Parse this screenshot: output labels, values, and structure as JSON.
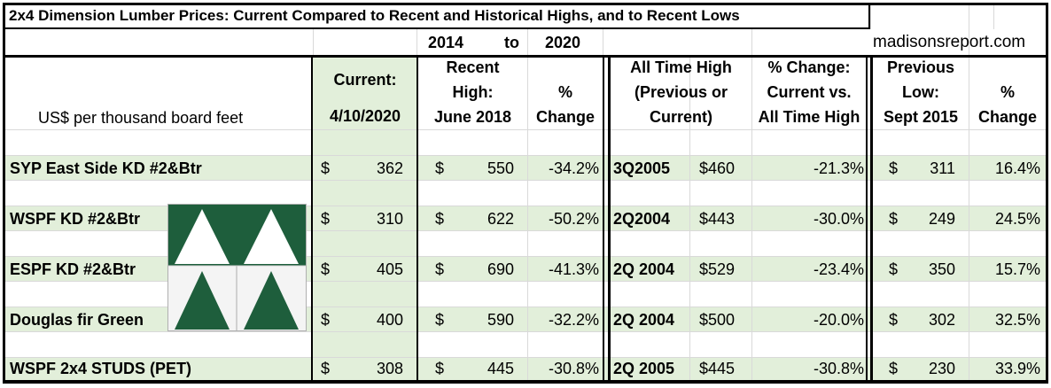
{
  "title": "2x4 Dimension Lumber Prices: Current Compared to Recent and Historical Highs, and to Recent Lows",
  "period": {
    "start": "2014",
    "to": "to",
    "end": "2020"
  },
  "website": "madisonsreport.com",
  "headers": {
    "units": "US$ per thousand board feet",
    "current_line1": "Current:",
    "current_line2": "4/10/2020",
    "recent_line1": "Recent",
    "recent_line2": "High:",
    "recent_line3": "June 2018",
    "pct_line1": "%",
    "pct_line2": "Change",
    "ath_line1": "All Time High",
    "ath_line2": "(Previous or",
    "ath_line3": "Current)",
    "athchg_line1": "% Change:",
    "athchg_line2": "Current vs.",
    "athchg_line3": "All Time High",
    "low_line1": "Previous",
    "low_line2": "Low:",
    "low_line3": "Sept 2015",
    "lowpct_line1": "%",
    "lowpct_line2": "Change"
  },
  "currency": "$",
  "rows": [
    {
      "product": "SYP East Side KD #2&Btr",
      "current": "362",
      "recent_high": "550",
      "recent_change": "-34.2%",
      "ath_period": "3Q2005",
      "ath_price": "$460",
      "ath_change": "-21.3%",
      "low": "311",
      "low_change": "16.4%"
    },
    {
      "product": "WSPF KD #2&Btr",
      "current": "310",
      "recent_high": "622",
      "recent_change": "-50.2%",
      "ath_period": "2Q2004",
      "ath_price": "$443",
      "ath_change": "-30.0%",
      "low": "249",
      "low_change": "24.5%"
    },
    {
      "product": "ESPF KD #2&Btr",
      "current": "405",
      "recent_high": "690",
      "recent_change": "-41.3%",
      "ath_period": "2Q 2004",
      "ath_price": "$529",
      "ath_change": "-23.4%",
      "low": "350",
      "low_change": "15.7%"
    },
    {
      "product": "Douglas fir Green",
      "current": "400",
      "recent_high": "590",
      "recent_change": "-32.2%",
      "ath_period": "2Q 2004",
      "ath_price": "$500",
      "ath_change": "-20.0%",
      "low": "302",
      "low_change": "32.5%"
    },
    {
      "product": "WSPF 2x4 STUDS (PET)",
      "current": "308",
      "recent_high": "445",
      "recent_change": "-30.8%",
      "ath_period": "2Q 2005",
      "ath_price": "$445",
      "ath_change": "-30.8%",
      "low": "230",
      "low_change": "33.9%"
    }
  ],
  "colors": {
    "row_shade": "#e2efda",
    "current_col": "#e2efda",
    "logo_green": "#1e5e3c",
    "grid": "#d9d9d9"
  },
  "logo": {
    "icon": "madisons-triangle-logo"
  }
}
